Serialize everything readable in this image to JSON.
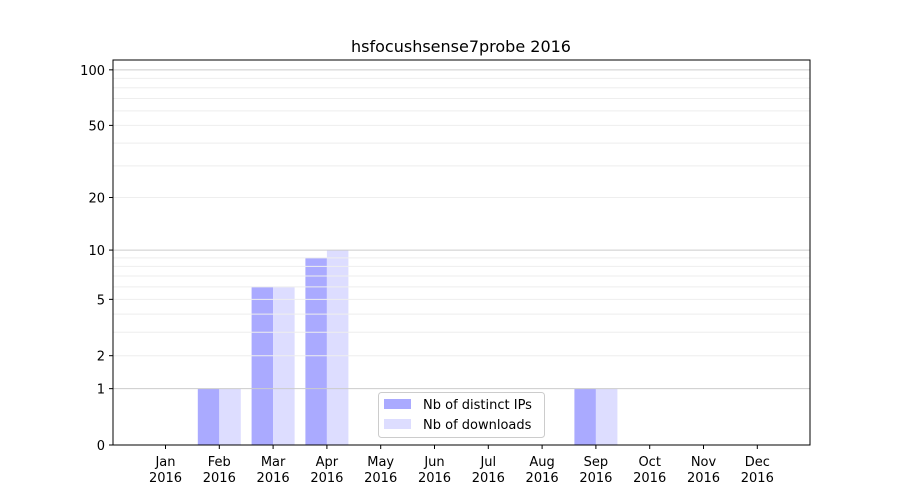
{
  "chart_data": {
    "type": "bar",
    "title": "hsfocushsense7probe 2016",
    "xlabel": "",
    "ylabel": "",
    "yscale": "log(1+y)",
    "ylim": [
      0,
      113
    ],
    "yticks": [
      0,
      1,
      2,
      5,
      10,
      20,
      50,
      100
    ],
    "grid": true,
    "legend_position": "lower-center",
    "categories": [
      "Jan\n2016",
      "Feb\n2016",
      "Mar\n2016",
      "Apr\n2016",
      "May\n2016",
      "Jun\n2016",
      "Jul\n2016",
      "Aug\n2016",
      "Sep\n2016",
      "Oct\n2016",
      "Nov\n2016",
      "Dec\n2016"
    ],
    "series": [
      {
        "name": "Nb of distinct IPs",
        "color": "#aaaaff",
        "values": [
          0,
          1,
          6,
          9,
          0,
          0,
          0,
          0,
          1,
          0,
          0,
          0
        ]
      },
      {
        "name": "Nb of downloads",
        "color": "#ddddff",
        "values": [
          0,
          1,
          6,
          10,
          0,
          0,
          0,
          0,
          1,
          0,
          0,
          0
        ]
      }
    ]
  }
}
